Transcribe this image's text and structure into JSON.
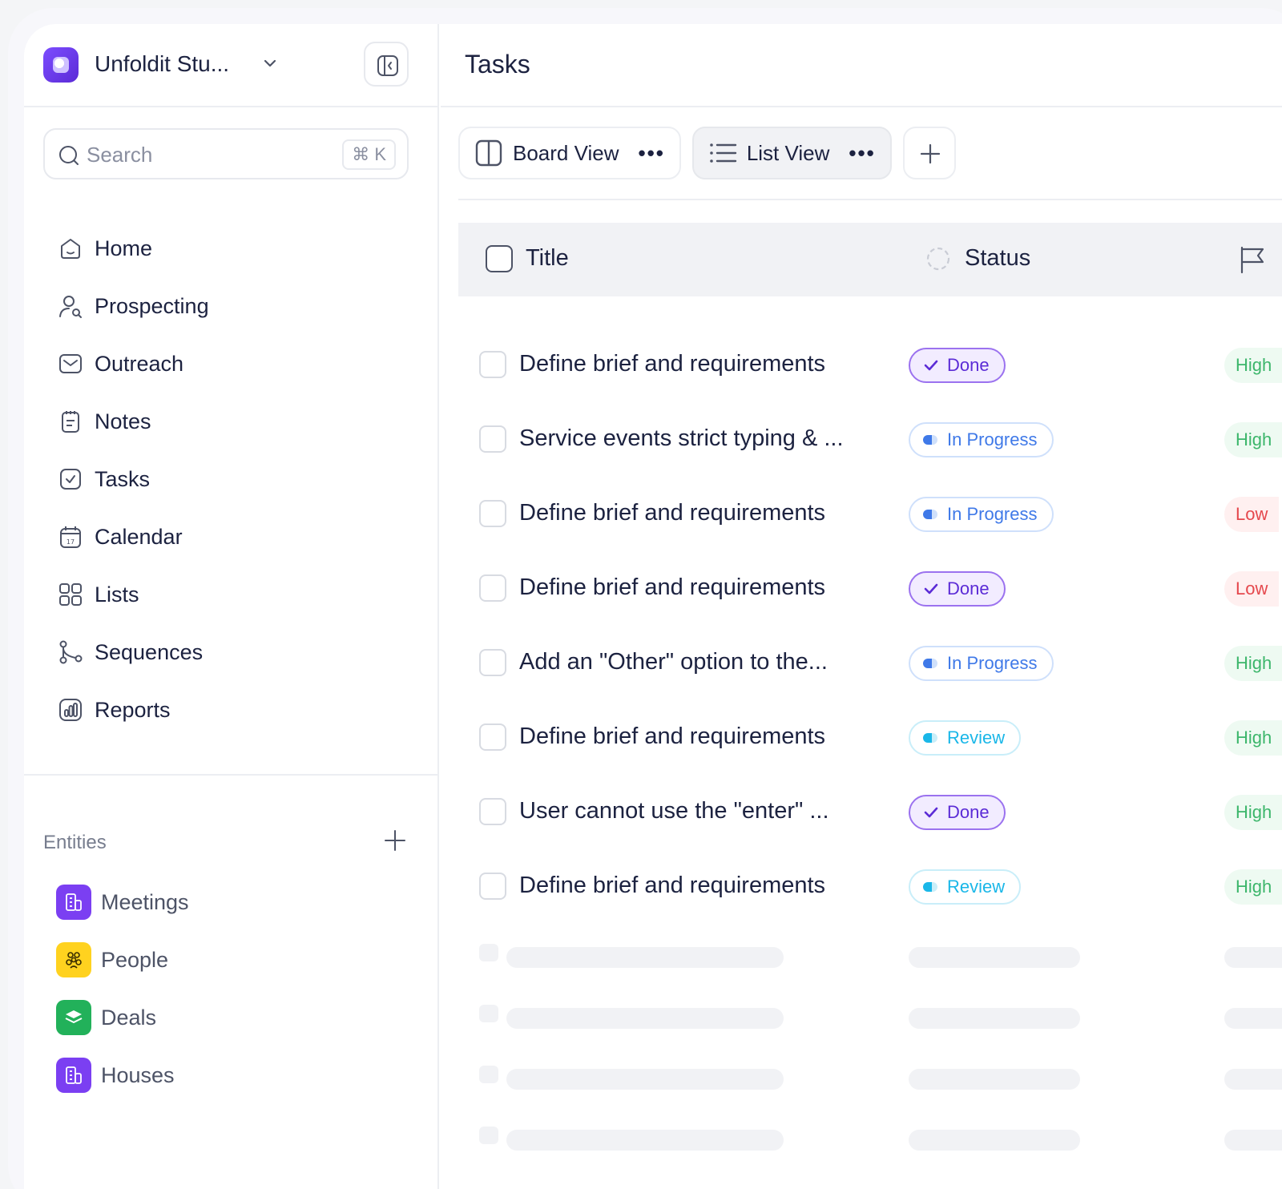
{
  "workspace": {
    "name": "Unfoldit Stu..."
  },
  "search": {
    "placeholder": "Search",
    "shortcut": "⌘ K"
  },
  "nav": {
    "items": [
      {
        "label": "Home",
        "icon": "home-icon"
      },
      {
        "label": "Prospecting",
        "icon": "user-search-icon"
      },
      {
        "label": "Outreach",
        "icon": "mail-icon"
      },
      {
        "label": "Notes",
        "icon": "notes-icon"
      },
      {
        "label": "Tasks",
        "icon": "task-check-icon"
      },
      {
        "label": "Calendar",
        "icon": "calendar-icon"
      },
      {
        "label": "Lists",
        "icon": "grid-icon"
      },
      {
        "label": "Sequences",
        "icon": "sequence-icon"
      },
      {
        "label": "Reports",
        "icon": "chart-icon"
      }
    ]
  },
  "entities": {
    "title": "Entities",
    "items": [
      {
        "label": "Meetings",
        "color": "#7b3ff2",
        "icon": "building-icon"
      },
      {
        "label": "People",
        "color": "#ffd21f",
        "icon": "people-icon"
      },
      {
        "label": "Deals",
        "color": "#22b15a",
        "icon": "layers-icon"
      },
      {
        "label": "Houses",
        "color": "#7b3ff2",
        "icon": "building-icon"
      }
    ]
  },
  "page": {
    "title": "Tasks"
  },
  "tabs": [
    {
      "label": "Board View",
      "icon": "board-icon",
      "active": false
    },
    {
      "label": "List View",
      "icon": "list-icon",
      "active": true
    }
  ],
  "table": {
    "columns": {
      "title": "Title",
      "status": "Status"
    },
    "rows": [
      {
        "title": "Define brief and requirements",
        "status": "Done",
        "status_type": "done",
        "priority": "High",
        "priority_type": "high"
      },
      {
        "title": "Service events strict typing & ...",
        "status": "In Progress",
        "status_type": "progress",
        "priority": "High",
        "priority_type": "high"
      },
      {
        "title": "Define brief and requirements",
        "status": "In Progress",
        "status_type": "progress",
        "priority": "Low",
        "priority_type": "low"
      },
      {
        "title": "Define brief and requirements",
        "status": "Done",
        "status_type": "done",
        "priority": "Low",
        "priority_type": "low"
      },
      {
        "title": "Add an \"Other\" option to the...",
        "status": "In Progress",
        "status_type": "progress",
        "priority": "High",
        "priority_type": "high"
      },
      {
        "title": "Define brief and requirements",
        "status": "Review",
        "status_type": "review",
        "priority": "High",
        "priority_type": "high"
      },
      {
        "title": "User cannot use the \"enter\" ...",
        "status": "Done",
        "status_type": "done",
        "priority": "High",
        "priority_type": "high"
      },
      {
        "title": "Define brief and requirements",
        "status": "Review",
        "status_type": "review",
        "priority": "High",
        "priority_type": "high"
      }
    ]
  }
}
